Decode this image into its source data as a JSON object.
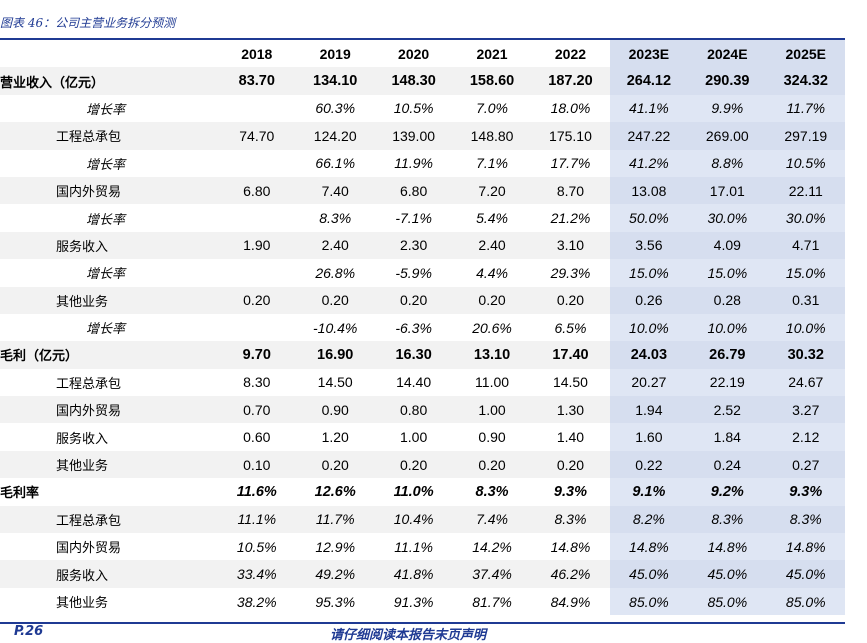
{
  "caption": "图表 46：公司主营业务拆分预测",
  "header": {
    "blank": "",
    "years": [
      "2018",
      "2019",
      "2020",
      "2021",
      "2022",
      "2023E",
      "2024E",
      "2025E"
    ]
  },
  "rows": [
    {
      "label": "营业收入（亿元）",
      "level": 0,
      "style": "bold",
      "values": [
        "83.70",
        "134.10",
        "148.30",
        "158.60",
        "187.20",
        "264.12",
        "290.39",
        "324.32"
      ]
    },
    {
      "label": "增长率",
      "level": 2,
      "style": "pct",
      "values": [
        "",
        "60.3%",
        "10.5%",
        "7.0%",
        "18.0%",
        "41.1%",
        "9.9%",
        "11.7%"
      ]
    },
    {
      "label": "工程总承包",
      "level": 1,
      "style": "",
      "values": [
        "74.70",
        "124.20",
        "139.00",
        "148.80",
        "175.10",
        "247.22",
        "269.00",
        "297.19"
      ]
    },
    {
      "label": "增长率",
      "level": 2,
      "style": "pct",
      "values": [
        "",
        "66.1%",
        "11.9%",
        "7.1%",
        "17.7%",
        "41.2%",
        "8.8%",
        "10.5%"
      ]
    },
    {
      "label": "国内外贸易",
      "level": 1,
      "style": "",
      "values": [
        "6.80",
        "7.40",
        "6.80",
        "7.20",
        "8.70",
        "13.08",
        "17.01",
        "22.11"
      ]
    },
    {
      "label": "增长率",
      "level": 2,
      "style": "pct",
      "values": [
        "",
        "8.3%",
        "-7.1%",
        "5.4%",
        "21.2%",
        "50.0%",
        "30.0%",
        "30.0%"
      ]
    },
    {
      "label": "服务收入",
      "level": 1,
      "style": "",
      "values": [
        "1.90",
        "2.40",
        "2.30",
        "2.40",
        "3.10",
        "3.56",
        "4.09",
        "4.71"
      ]
    },
    {
      "label": "增长率",
      "level": 2,
      "style": "pct",
      "values": [
        "",
        "26.8%",
        "-5.9%",
        "4.4%",
        "29.3%",
        "15.0%",
        "15.0%",
        "15.0%"
      ]
    },
    {
      "label": "其他业务",
      "level": 1,
      "style": "",
      "values": [
        "0.20",
        "0.20",
        "0.20",
        "0.20",
        "0.20",
        "0.26",
        "0.28",
        "0.31"
      ]
    },
    {
      "label": "增长率",
      "level": 2,
      "style": "pct",
      "values": [
        "",
        "-10.4%",
        "-6.3%",
        "20.6%",
        "6.5%",
        "10.0%",
        "10.0%",
        "10.0%"
      ]
    },
    {
      "label": "毛利（亿元）",
      "level": 0,
      "style": "bold",
      "values": [
        "9.70",
        "16.90",
        "16.30",
        "13.10",
        "17.40",
        "24.03",
        "26.79",
        "30.32"
      ]
    },
    {
      "label": "工程总承包",
      "level": 1,
      "style": "",
      "values": [
        "8.30",
        "14.50",
        "14.40",
        "11.00",
        "14.50",
        "20.27",
        "22.19",
        "24.67"
      ]
    },
    {
      "label": "国内外贸易",
      "level": 1,
      "style": "",
      "values": [
        "0.70",
        "0.90",
        "0.80",
        "1.00",
        "1.30",
        "1.94",
        "2.52",
        "3.27"
      ]
    },
    {
      "label": "服务收入",
      "level": 1,
      "style": "",
      "values": [
        "0.60",
        "1.20",
        "1.00",
        "0.90",
        "1.40",
        "1.60",
        "1.84",
        "2.12"
      ]
    },
    {
      "label": "其他业务",
      "level": 1,
      "style": "",
      "values": [
        "0.10",
        "0.20",
        "0.20",
        "0.20",
        "0.20",
        "0.22",
        "0.24",
        "0.27"
      ]
    },
    {
      "label": "毛利率",
      "level": 0,
      "style": "bold pct",
      "values": [
        "11.6%",
        "12.6%",
        "11.0%",
        "8.3%",
        "9.3%",
        "9.1%",
        "9.2%",
        "9.3%"
      ]
    },
    {
      "label": "工程总承包",
      "level": 1,
      "style": "pct",
      "values": [
        "11.1%",
        "11.7%",
        "10.4%",
        "7.4%",
        "8.3%",
        "8.2%",
        "8.3%",
        "8.3%"
      ]
    },
    {
      "label": "国内外贸易",
      "level": 1,
      "style": "pct",
      "values": [
        "10.5%",
        "12.9%",
        "11.1%",
        "14.2%",
        "14.8%",
        "14.8%",
        "14.8%",
        "14.8%"
      ]
    },
    {
      "label": "服务收入",
      "level": 1,
      "style": "pct",
      "values": [
        "33.4%",
        "49.2%",
        "41.8%",
        "37.4%",
        "46.2%",
        "45.0%",
        "45.0%",
        "45.0%"
      ]
    },
    {
      "label": "其他业务",
      "level": 1,
      "style": "pct",
      "values": [
        "38.2%",
        "95.3%",
        "91.3%",
        "81.7%",
        "84.9%",
        "85.0%",
        "85.0%",
        "85.0%"
      ]
    }
  ],
  "footer": {
    "page": "P.26",
    "disclaimer": "请仔细阅读本报告末页声明"
  },
  "colors": {
    "accent": "#1f3a93",
    "estimate_bg": "#dfe6f4",
    "stripe": "#f2f2f2"
  }
}
